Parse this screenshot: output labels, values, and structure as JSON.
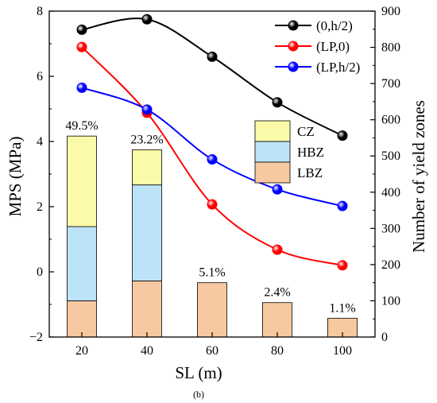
{
  "caption": "(b)",
  "chart_data": {
    "type": "line",
    "x": [
      20,
      40,
      60,
      80,
      100
    ],
    "xlabel": "SL (m)",
    "ylabel": "MPS (MPa)",
    "y2label": "Number of yield zones",
    "xlim": [
      10,
      110
    ],
    "ylim": [
      -2,
      8
    ],
    "y2lim": [
      0,
      900
    ],
    "xticks": [
      "20",
      "40",
      "60",
      "80",
      "100"
    ],
    "yticks": [
      "−2",
      "0",
      "2",
      "4",
      "6",
      "8"
    ],
    "y2ticks": [
      "0",
      "100",
      "200",
      "300",
      "400",
      "500",
      "600",
      "700",
      "800",
      "900"
    ],
    "grid": false,
    "series": [
      {
        "name": "(0,h/2)",
        "axis": "left",
        "color": "#000000",
        "values": [
          7.43,
          7.75,
          6.6,
          5.2,
          4.18
        ]
      },
      {
        "name": "(LP,0)",
        "axis": "left",
        "color": "#ff0000",
        "values": [
          6.9,
          4.88,
          2.07,
          0.68,
          0.2
        ]
      },
      {
        "name": "(LP,h/2)",
        "axis": "left",
        "color": "#0000ff",
        "values": [
          5.65,
          4.98,
          3.45,
          2.53,
          2.02
        ]
      }
    ],
    "stacked_bars": {
      "axis": "right",
      "segments": [
        {
          "name": "LBZ",
          "color": "#f7c9a0",
          "values": [
            100,
            155,
            150,
            95,
            52
          ]
        },
        {
          "name": "HBZ",
          "color": "#bde3f8",
          "values": [
            205,
            265,
            0,
            0,
            0
          ]
        },
        {
          "name": "CZ",
          "color": "#fafaa8",
          "values": [
            250,
            97,
            0,
            0,
            0
          ]
        }
      ],
      "labels": [
        "49.5%",
        "23.2%",
        "5.1%",
        "2.4%",
        "1.1%"
      ]
    },
    "legend_lines_position": "top-right",
    "legend_bars_position": "center-right",
    "legend_bars_order": [
      "CZ",
      "HBZ",
      "LBZ"
    ]
  }
}
